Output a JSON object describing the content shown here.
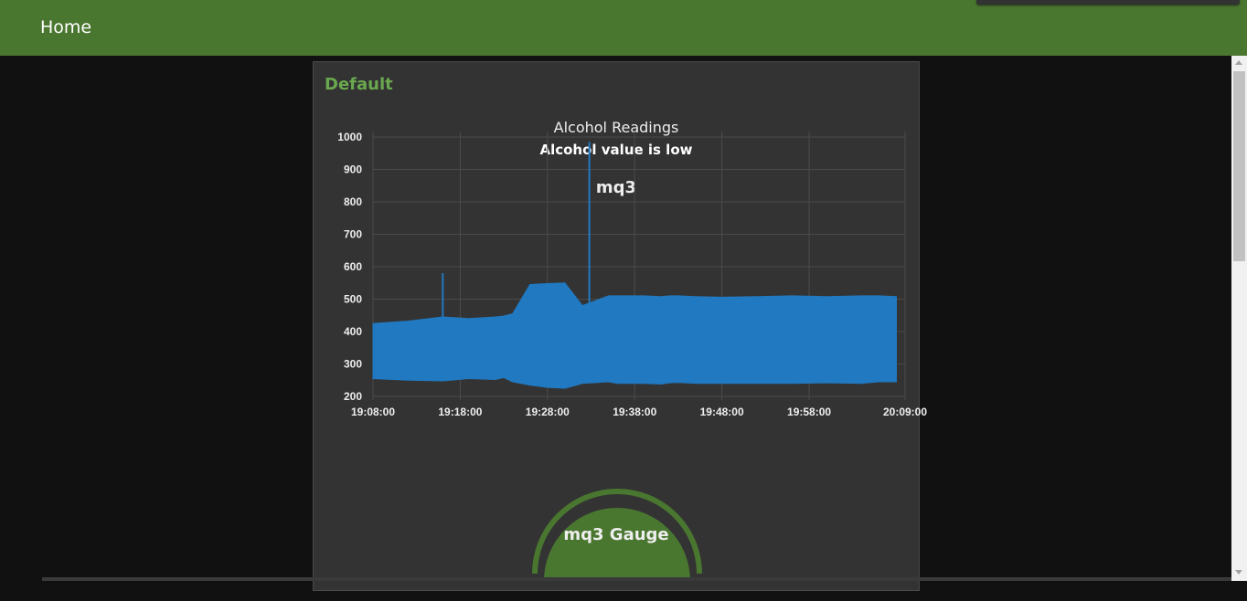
{
  "topbar": {
    "title": "Home"
  },
  "group": {
    "title": "Default"
  },
  "text_widget": {
    "label": "Alcohol Readings",
    "value": "Alcohol value is low"
  },
  "chart_title": "mq3",
  "gauge_title": "mq3 Gauge",
  "colors": {
    "header": "#4a7730",
    "accent": "#6aa84f",
    "series": "#2179c1",
    "background": "#111111",
    "panel": "#333333"
  },
  "chart_data": {
    "type": "area",
    "title": "mq3",
    "ylim": [
      200,
      1000
    ],
    "yticks": [
      200,
      300,
      400,
      500,
      600,
      700,
      800,
      900,
      1000
    ],
    "xticks": [
      "19:08:00",
      "19:18:00",
      "19:28:00",
      "19:38:00",
      "19:48:00",
      "19:58:00",
      "20:09:00"
    ],
    "grid": true,
    "x_range_minutes": [
      0,
      61
    ],
    "series": [
      {
        "x_minutes": [
          0,
          4,
          8,
          11,
          14,
          15,
          16,
          18,
          20,
          22,
          24,
          27,
          28,
          29,
          31,
          33,
          34,
          35,
          37,
          40,
          44,
          48,
          52,
          56,
          58,
          60
        ],
        "low": [
          255,
          250,
          248,
          255,
          252,
          258,
          245,
          235,
          228,
          225,
          240,
          245,
          240,
          240,
          240,
          238,
          242,
          243,
          240,
          240,
          240,
          240,
          242,
          240,
          245,
          245
        ],
        "high": [
          425,
          432,
          445,
          440,
          445,
          448,
          455,
          545,
          548,
          550,
          480,
          510,
          510,
          510,
          510,
          508,
          510,
          510,
          508,
          506,
          508,
          510,
          508,
          510,
          510,
          508
        ]
      }
    ],
    "spikes": [
      {
        "x_minute": 8,
        "value": 580
      },
      {
        "x_minute": 24.8,
        "value": 985
      }
    ]
  }
}
